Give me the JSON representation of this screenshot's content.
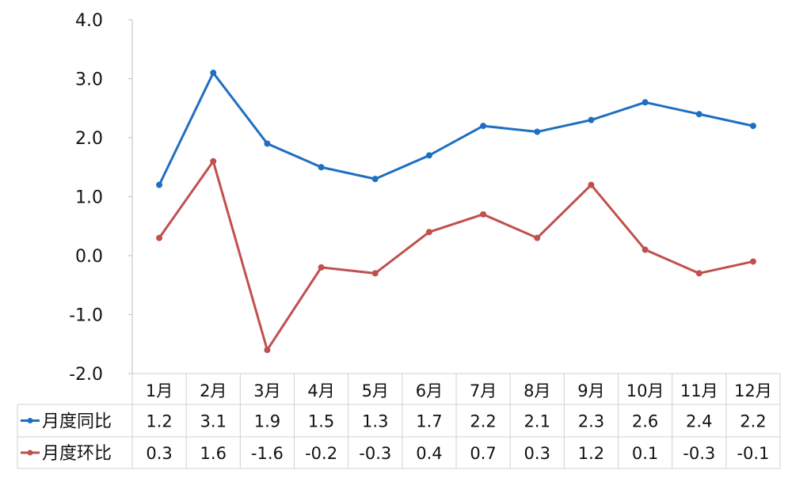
{
  "chart_data": {
    "type": "line",
    "categories": [
      "1月",
      "2月",
      "3月",
      "4月",
      "5月",
      "6月",
      "7月",
      "8月",
      "9月",
      "10月",
      "11月",
      "12月"
    ],
    "series": [
      {
        "name": "月度同比",
        "color": "#1F6FC0",
        "values": [
          1.2,
          3.1,
          1.9,
          1.5,
          1.3,
          1.7,
          2.2,
          2.1,
          2.3,
          2.6,
          2.4,
          2.2
        ]
      },
      {
        "name": "月度环比",
        "color": "#C0504D",
        "values": [
          0.3,
          1.6,
          -1.6,
          -0.2,
          -0.3,
          0.4,
          0.7,
          0.3,
          1.2,
          0.1,
          -0.3,
          -0.1
        ]
      }
    ],
    "ylim": [
      -2.0,
      4.0
    ],
    "yticks": [
      "4.0",
      "3.0",
      "2.0",
      "1.0",
      "0.0",
      "-1.0",
      "-2.0"
    ],
    "grid": false,
    "data_table": true,
    "legend": "in-data-table"
  }
}
